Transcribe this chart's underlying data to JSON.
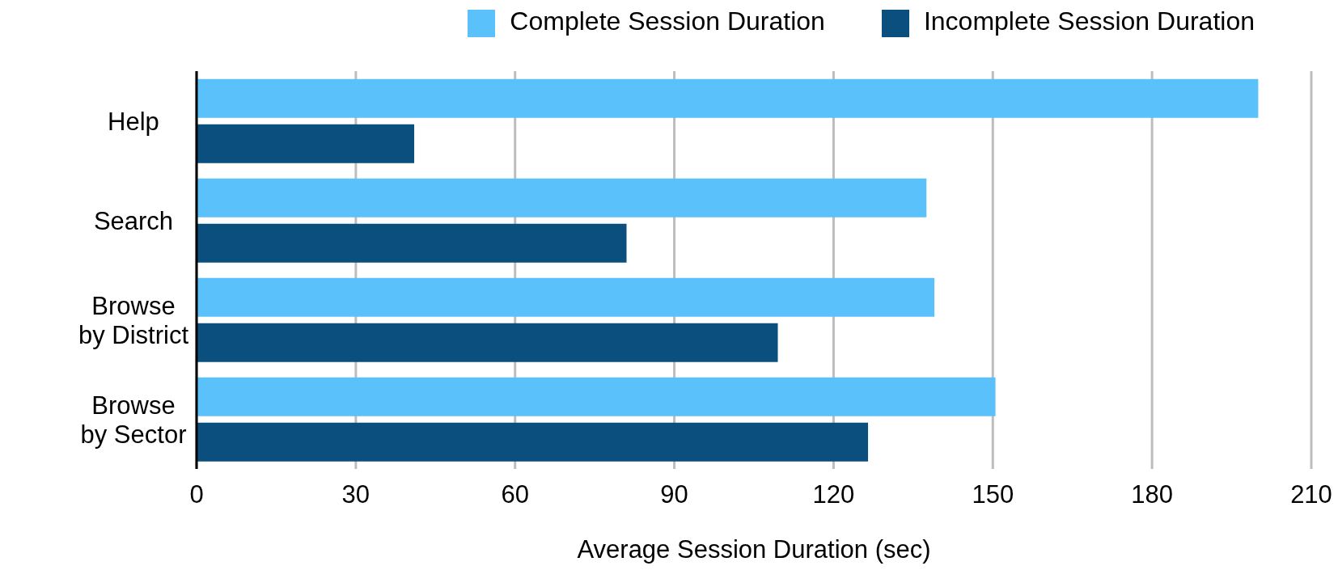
{
  "chart_data": {
    "type": "bar",
    "orientation": "horizontal",
    "xlabel": "Average Session Duration (sec)",
    "categories": [
      "Help",
      "Search",
      "Browse by District",
      "Browse by Sector"
    ],
    "series": [
      {
        "name": "Complete Session Duration",
        "color": "#5ac1fb",
        "values": [
          200,
          137.5,
          139,
          150.5
        ]
      },
      {
        "name": "Incomplete Session Duration",
        "color": "#0a4f7e",
        "values": [
          41,
          81,
          109.5,
          126.5
        ]
      }
    ],
    "xlim": [
      0,
      210
    ],
    "xticks": [
      0,
      30,
      60,
      90,
      120,
      150,
      180,
      210
    ],
    "grid": "x",
    "legend": "top"
  }
}
